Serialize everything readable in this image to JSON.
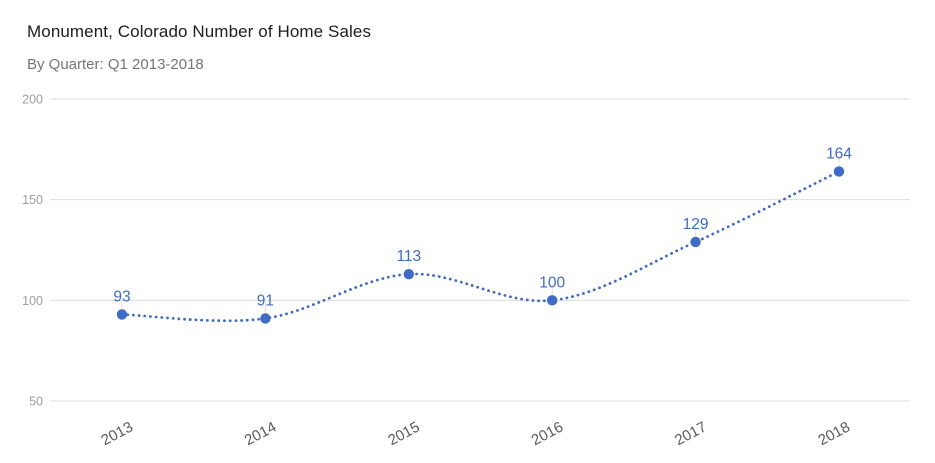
{
  "header": {
    "title": "Monument, Colorado Number of Home Sales",
    "subtitle": "By Quarter: Q1 2013-2018"
  },
  "chart_data": {
    "type": "line",
    "line_style": "dotted",
    "smooth": true,
    "title": "Monument, Colorado Number of Home Sales",
    "subtitle": "By Quarter: Q1 2013-2018",
    "categories": [
      "2013",
      "2014",
      "2015",
      "2016",
      "2017",
      "2018"
    ],
    "series": [
      {
        "name": "Number of Home Sales",
        "values": [
          93,
          91,
          113,
          100,
          129,
          164
        ]
      }
    ],
    "data_labels": [
      "93",
      "91",
      "113",
      "100",
      "129",
      "164"
    ],
    "xlabel": "",
    "ylabel": "",
    "yticks": [
      50,
      100,
      150,
      200
    ],
    "ylim": [
      50,
      200
    ],
    "grid": true,
    "legend": "none",
    "x_tick_rotation_deg": -28,
    "colors": {
      "series": "#3d6bc7",
      "data_label": "#3d6bc7",
      "gridline": "#dcdcdc",
      "label_stem": "#e0e0e0",
      "y_tick_label": "#9e9e9e",
      "x_tick_label": "#5a5a5a",
      "title": "#1d1d1d",
      "subtitle": "#757575",
      "background": "#ffffff"
    }
  }
}
